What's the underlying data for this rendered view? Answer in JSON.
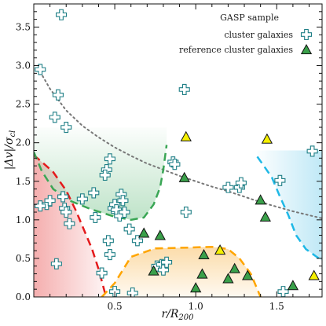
{
  "chart_data": {
    "type": "scatter",
    "xlabel": "r/R200",
    "ylabel": "|Δv|/σcl",
    "xlim": [
      0,
      1.78
    ],
    "ylim": [
      0,
      3.8
    ],
    "x_ticks": [
      "0.5",
      "1.0",
      "1.5"
    ],
    "y_ticks": [
      "0.0",
      "0.5",
      "1.0",
      "1.5",
      "2.0",
      "2.5",
      "3.0",
      "3.5"
    ],
    "legend": {
      "title": "GASP sample",
      "placement": "top-right",
      "entries": [
        "cluster galaxies",
        "reference cluster galaxies"
      ]
    },
    "colors": {
      "cluster_marker_edge": "#1f7f86",
      "reference_marker_fill": "#3aa04a",
      "highlight_marker_fill": "#f5f000",
      "red_region": "#f3a0a0",
      "green_region": "#b7e0c2",
      "orange_region": "#fbd8a0",
      "blue_region": "#b9e6f5",
      "red_line": "#e41a1c",
      "green_line": "#3aa655",
      "orange_line": "#ffa500",
      "blue_line": "#1fb8e6",
      "dotted_line": "#777777"
    },
    "series": [
      {
        "name": "cluster galaxies",
        "marker": "plus",
        "points": [
          [
            0.17,
            3.66
          ],
          [
            0.04,
            2.95
          ],
          [
            0.15,
            2.62
          ],
          [
            0.13,
            2.33
          ],
          [
            0.2,
            2.2
          ],
          [
            0.93,
            2.69
          ],
          [
            0.08,
            1.2
          ],
          [
            0.1,
            1.25
          ],
          [
            0.04,
            1.18
          ],
          [
            0.18,
            1.3
          ],
          [
            0.19,
            1.15
          ],
          [
            0.2,
            1.1
          ],
          [
            0.22,
            0.95
          ],
          [
            0.3,
            1.27
          ],
          [
            0.37,
            1.35
          ],
          [
            0.38,
            1.03
          ],
          [
            0.45,
            1.65
          ],
          [
            0.47,
            1.79
          ],
          [
            0.44,
            1.58
          ],
          [
            0.49,
            1.15
          ],
          [
            0.5,
            1.2
          ],
          [
            0.51,
            1.13
          ],
          [
            0.53,
            1.05
          ],
          [
            0.54,
            1.33
          ],
          [
            0.55,
            1.25
          ],
          [
            0.56,
            1.1
          ],
          [
            0.59,
            0.88
          ],
          [
            0.64,
            0.73
          ],
          [
            0.46,
            0.73
          ],
          [
            0.47,
            0.55
          ],
          [
            0.42,
            0.31
          ],
          [
            0.14,
            0.43
          ],
          [
            0.5,
            0.07
          ],
          [
            0.61,
            0.05
          ],
          [
            0.76,
            0.4
          ],
          [
            0.79,
            0.42
          ],
          [
            0.8,
            0.35
          ],
          [
            0.82,
            0.45
          ],
          [
            0.86,
            1.75
          ],
          [
            0.87,
            1.72
          ],
          [
            0.94,
            1.1
          ],
          [
            1.2,
            1.42
          ],
          [
            1.27,
            1.42
          ],
          [
            1.28,
            1.48
          ],
          [
            1.52,
            1.51
          ],
          [
            1.72,
            1.89
          ],
          [
            1.54,
            0.07
          ]
        ]
      },
      {
        "name": "reference cluster galaxies",
        "marker": "triangle",
        "color": "green",
        "points": [
          [
            0.93,
            1.54
          ],
          [
            0.68,
            0.82
          ],
          [
            0.78,
            0.79
          ],
          [
            0.74,
            0.33
          ],
          [
            1.05,
            0.54
          ],
          [
            1.04,
            0.29
          ],
          [
            1.0,
            0.11
          ],
          [
            1.2,
            0.23
          ],
          [
            1.24,
            0.36
          ],
          [
            1.32,
            0.27
          ],
          [
            1.4,
            1.25
          ],
          [
            1.43,
            1.03
          ],
          [
            1.6,
            0.14
          ]
        ]
      },
      {
        "name": "",
        "marker": "triangle",
        "color": "yellow",
        "points": [
          [
            0.94,
            2.07
          ],
          [
            1.15,
            0.6
          ],
          [
            1.44,
            2.04
          ],
          [
            1.73,
            0.27
          ]
        ]
      }
    ],
    "curves": {
      "dotted": [
        [
          0.04,
          2.92
        ],
        [
          0.1,
          2.7
        ],
        [
          0.2,
          2.42
        ],
        [
          0.3,
          2.22
        ],
        [
          0.4,
          2.07
        ],
        [
          0.5,
          1.94
        ],
        [
          0.6,
          1.83
        ],
        [
          0.7,
          1.73
        ],
        [
          0.8,
          1.65
        ],
        [
          0.9,
          1.57
        ],
        [
          1.0,
          1.5
        ],
        [
          1.1,
          1.43
        ],
        [
          1.2,
          1.37
        ],
        [
          1.3,
          1.3
        ],
        [
          1.4,
          1.23
        ],
        [
          1.5,
          1.17
        ],
        [
          1.6,
          1.11
        ],
        [
          1.7,
          1.06
        ],
        [
          1.78,
          1.02
        ]
      ],
      "red_dashed": [
        [
          0.0,
          1.84
        ],
        [
          0.05,
          1.75
        ],
        [
          0.12,
          1.62
        ],
        [
          0.2,
          1.38
        ],
        [
          0.26,
          1.12
        ],
        [
          0.31,
          0.87
        ],
        [
          0.36,
          0.62
        ],
        [
          0.4,
          0.36
        ],
        [
          0.44,
          0.05
        ],
        [
          0.45,
          0.0
        ]
      ],
      "green_dashed": [
        [
          0.0,
          1.88
        ],
        [
          0.05,
          1.63
        ],
        [
          0.12,
          1.4
        ],
        [
          0.22,
          1.25
        ],
        [
          0.35,
          1.14
        ],
        [
          0.5,
          1.04
        ],
        [
          0.6,
          1.0
        ],
        [
          0.68,
          1.03
        ],
        [
          0.74,
          1.2
        ],
        [
          0.78,
          1.42
        ],
        [
          0.8,
          1.65
        ],
        [
          0.82,
          1.97
        ]
      ],
      "orange_dashed": [
        [
          0.42,
          0.0
        ],
        [
          0.5,
          0.18
        ],
        [
          0.6,
          0.52
        ],
        [
          0.75,
          0.63
        ],
        [
          0.95,
          0.64
        ],
        [
          1.1,
          0.65
        ],
        [
          1.2,
          0.62
        ],
        [
          1.27,
          0.5
        ],
        [
          1.34,
          0.3
        ],
        [
          1.39,
          0.05
        ],
        [
          1.4,
          0.0
        ]
      ],
      "blue_dashed": [
        [
          1.38,
          1.82
        ],
        [
          1.42,
          1.7
        ],
        [
          1.47,
          1.55
        ],
        [
          1.52,
          1.3
        ],
        [
          1.57,
          1.07
        ],
        [
          1.62,
          0.8
        ],
        [
          1.68,
          0.62
        ],
        [
          1.74,
          0.53
        ],
        [
          1.78,
          0.47
        ]
      ]
    }
  }
}
